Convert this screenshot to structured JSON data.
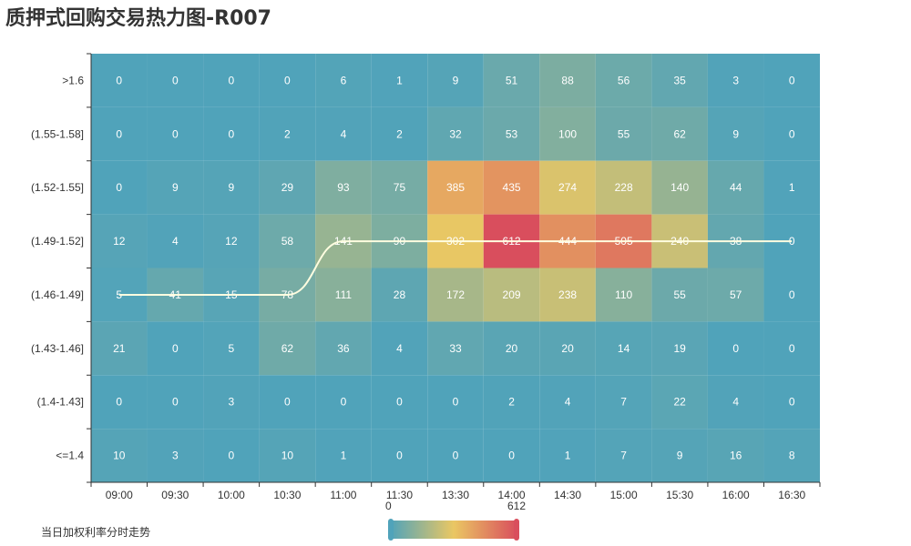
{
  "title": "质押式回购交易热力图-R007",
  "line_legend": "当日加权利率分时走势",
  "colors": {
    "low": "#50a3ba",
    "mid": "#eac763",
    "high": "#d94e5d",
    "line": "#fffde0"
  },
  "chart_data": {
    "type": "heatmap",
    "title": "质押式回购交易热力图-R007",
    "x_categories": [
      "09:00",
      "09:30",
      "10:00",
      "10:30",
      "11:00",
      "11:30",
      "13:30",
      "14:00",
      "14:30",
      "15:00",
      "15:30",
      "16:00",
      "16:30"
    ],
    "y_categories": [
      ">1.6",
      "(1.55-1.58]",
      "(1.52-1.55]",
      "(1.49-1.52]",
      "(1.46-1.49]",
      "(1.43-1.46]",
      "(1.4-1.43]",
      "<=1.4"
    ],
    "values": [
      [
        0,
        0,
        0,
        0,
        6,
        1,
        9,
        51,
        88,
        56,
        35,
        3,
        0
      ],
      [
        0,
        0,
        0,
        2,
        4,
        2,
        32,
        53,
        100,
        55,
        62,
        9,
        0
      ],
      [
        0,
        9,
        9,
        29,
        93,
        75,
        385,
        435,
        274,
        228,
        140,
        44,
        1
      ],
      [
        12,
        4,
        12,
        58,
        141,
        90,
        302,
        612,
        444,
        505,
        240,
        38,
        0
      ],
      [
        5,
        41,
        15,
        78,
        111,
        28,
        172,
        209,
        238,
        110,
        55,
        57,
        0
      ],
      [
        21,
        0,
        5,
        62,
        36,
        4,
        33,
        20,
        20,
        14,
        19,
        0,
        0
      ],
      [
        0,
        0,
        3,
        0,
        0,
        0,
        0,
        2,
        4,
        7,
        22,
        4,
        0
      ],
      [
        10,
        3,
        0,
        10,
        1,
        0,
        0,
        0,
        1,
        7,
        9,
        16,
        8
      ]
    ],
    "visual_map": {
      "min": 0,
      "max": 612
    },
    "line_series": {
      "name": "当日加权利率分时走势",
      "type": "line",
      "smooth": true,
      "values": [
        "(1.46-1.49]",
        "(1.46-1.49]",
        "(1.46-1.49]",
        "(1.46-1.49]",
        "(1.49-1.52]",
        "(1.49-1.52]",
        "(1.49-1.52]",
        "(1.49-1.52]",
        "(1.49-1.52]",
        "(1.49-1.52]",
        "(1.49-1.52]",
        "(1.49-1.52]",
        "(1.49-1.52]"
      ]
    }
  }
}
